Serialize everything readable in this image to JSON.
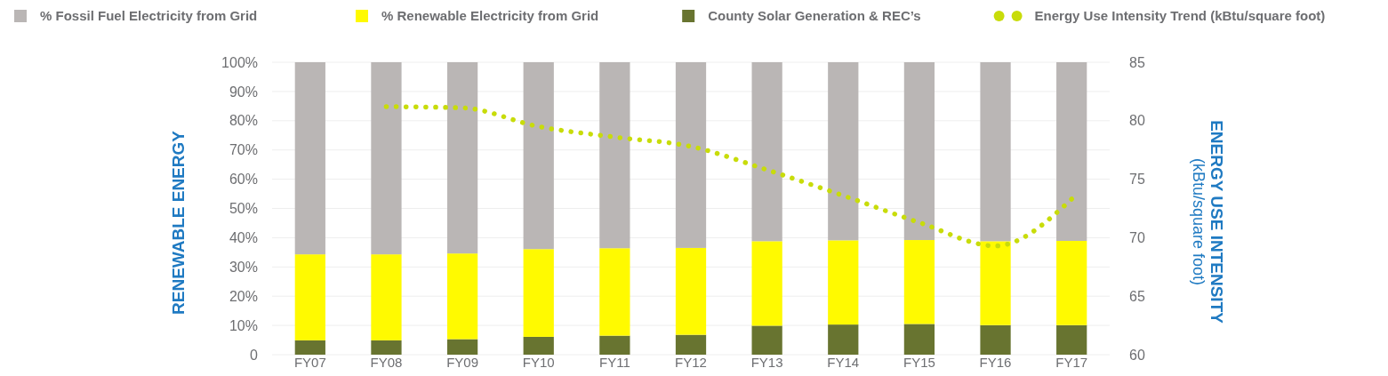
{
  "chart_data": {
    "type": "bar",
    "stacked": true,
    "categories": [
      "FY07",
      "FY08",
      "FY09",
      "FY10",
      "FY11",
      "FY12",
      "FY13",
      "FY14",
      "FY15",
      "FY16",
      "FY17"
    ],
    "series": [
      {
        "name": "County Solar Generation & REC’s",
        "color": "#687430",
        "values": [
          4.9,
          4.9,
          5.3,
          6.1,
          6.5,
          6.8,
          9.9,
          10.3,
          10.5,
          10.1,
          10.1
        ]
      },
      {
        "name": "% Renewable Electricity from Grid",
        "color": "#fffa00",
        "values": [
          29.4,
          29.4,
          29.3,
          30.0,
          29.9,
          29.7,
          28.9,
          28.8,
          28.7,
          28.7,
          28.8
        ]
      },
      {
        "name": "% Fossil Fuel Electricity from Grid",
        "color": "#bab6b5",
        "values": [
          65.7,
          65.7,
          65.4,
          63.9,
          63.6,
          63.5,
          61.2,
          60.9,
          60.8,
          61.2,
          61.1
        ]
      },
      {
        "name": "Energy Use Intensity Trend (kBtu/square foot)",
        "type": "line",
        "axis": "y2",
        "color": "#c8dc0a",
        "line_style": "dotted",
        "values": [
          null,
          81.2,
          81.1,
          79.5,
          78.6,
          77.8,
          75.8,
          73.6,
          71.3,
          69.3,
          73.3
        ]
      }
    ],
    "ylabel": "RENEWABLE ENERGY",
    "y2label": "ENERGY USE INTENSITY\n(kBtu/square foot)",
    "ylim": [
      0,
      100
    ],
    "yticks": [
      {
        "value": 0,
        "label": "0"
      },
      {
        "value": 10,
        "label": "10%"
      },
      {
        "value": 20,
        "label": "20%"
      },
      {
        "value": 30,
        "label": "30%"
      },
      {
        "value": 40,
        "label": "40%"
      },
      {
        "value": 50,
        "label": "50%"
      },
      {
        "value": 60,
        "label": "60%"
      },
      {
        "value": 70,
        "label": "70%"
      },
      {
        "value": 80,
        "label": "80%"
      },
      {
        "value": 90,
        "label": "90%"
      },
      {
        "value": 100,
        "label": "100%"
      }
    ],
    "y2lim": [
      60,
      85
    ],
    "y2ticks": [
      60,
      65,
      70,
      75,
      80,
      85
    ],
    "grid": "y",
    "legend": "top"
  }
}
